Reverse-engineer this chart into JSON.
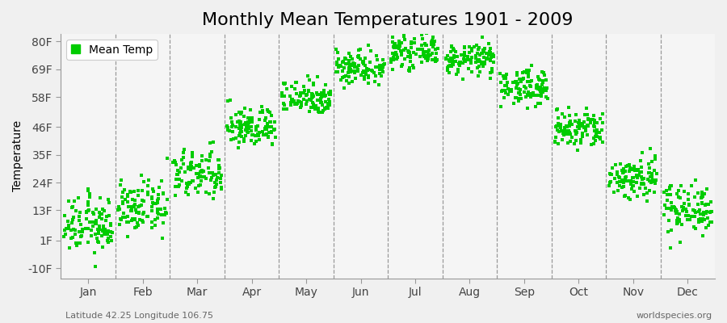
{
  "title": "Monthly Mean Temperatures 1901 - 2009",
  "ylabel": "Temperature",
  "subtitle_left": "Latitude 42.25 Longitude 106.75",
  "subtitle_right": "worldspecies.org",
  "ytick_labels": [
    "-10F",
    "1F",
    "13F",
    "24F",
    "35F",
    "46F",
    "58F",
    "69F",
    "80F"
  ],
  "ytick_values": [
    -10,
    1,
    13,
    24,
    35,
    46,
    58,
    69,
    80
  ],
  "ylim": [
    -14,
    83
  ],
  "months": [
    "Jan",
    "Feb",
    "Mar",
    "Apr",
    "May",
    "Jun",
    "Jul",
    "Aug",
    "Sep",
    "Oct",
    "Nov",
    "Dec"
  ],
  "mean_temps_f": [
    7,
    14,
    27,
    46,
    58,
    70,
    76,
    73,
    62,
    45,
    26,
    14
  ],
  "spread_f": [
    5.5,
    5.0,
    5.0,
    4.0,
    3.5,
    3.5,
    3.0,
    3.0,
    3.5,
    4.0,
    4.5,
    5.0
  ],
  "n_points": 109,
  "marker_color": "#00CC00",
  "marker_size": 9,
  "background_color": "#F0F0F0",
  "plot_bg_color": "#F5F5F5",
  "legend_label": "Mean Temp",
  "title_fontsize": 16,
  "label_fontsize": 10,
  "tick_fontsize": 10,
  "n_months": 12,
  "year_start": 1901,
  "year_end": 2009
}
